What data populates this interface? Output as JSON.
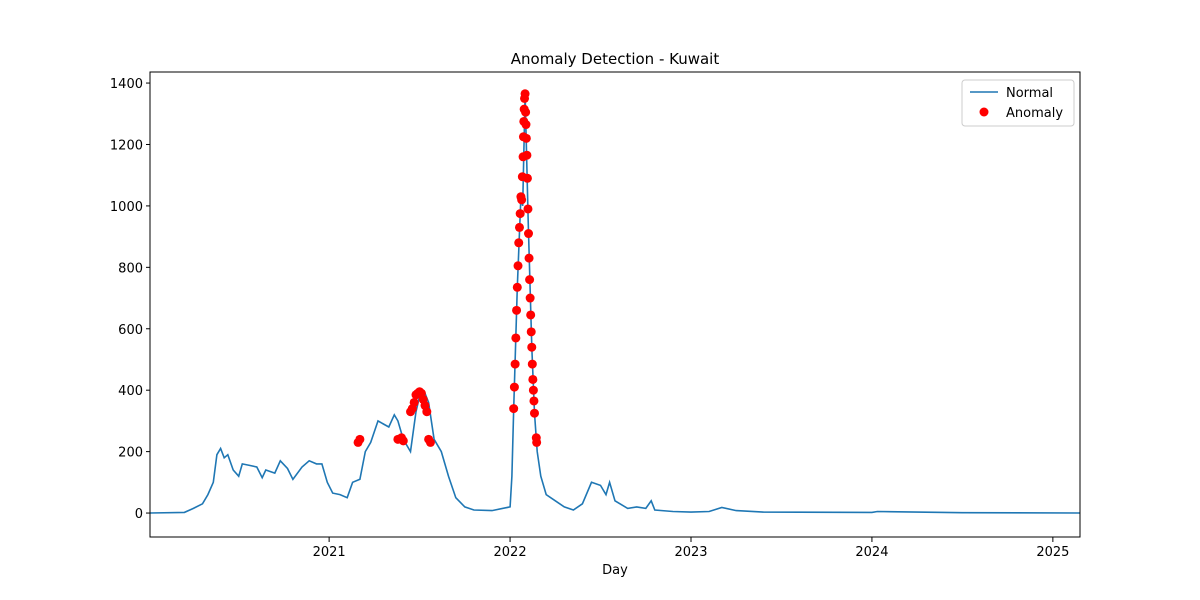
{
  "chart_data": {
    "type": "line",
    "title": "Anomaly Detection - Kuwait",
    "x_label": "Day",
    "xlim": [
      2020.01,
      2025.15
    ],
    "xticks": [
      2021,
      2022,
      2023,
      2024,
      2025
    ],
    "ylim": [
      -78,
      1436
    ],
    "yticks": [
      0,
      200,
      400,
      600,
      800,
      1000,
      1200,
      1400
    ],
    "legend": "upper right",
    "series": [
      {
        "name": "Normal",
        "type": "line",
        "color": "#1f77b4",
        "x": [
          2020.01,
          2020.2,
          2020.25,
          2020.3,
          2020.33,
          2020.36,
          2020.38,
          2020.4,
          2020.42,
          2020.44,
          2020.47,
          2020.5,
          2020.52,
          2020.56,
          2020.6,
          2020.63,
          2020.65,
          2020.7,
          2020.73,
          2020.77,
          2020.8,
          2020.85,
          2020.89,
          2020.93,
          2020.96,
          2020.99,
          2021.02,
          2021.06,
          2021.1,
          2021.13,
          2021.17,
          2021.2,
          2021.23,
          2021.27,
          2021.3,
          2021.33,
          2021.36,
          2021.38,
          2021.41,
          2021.45,
          2021.48,
          2021.5,
          2021.53,
          2021.55,
          2021.58,
          2021.62,
          2021.66,
          2021.7,
          2021.75,
          2021.8,
          2021.9,
          2022.0,
          2022.01,
          2022.02,
          2022.04,
          2022.06,
          2022.07,
          2022.083,
          2022.1,
          2022.12,
          2022.135,
          2022.15,
          2022.17,
          2022.2,
          2022.25,
          2022.3,
          2022.35,
          2022.4,
          2022.45,
          2022.5,
          2022.53,
          2022.55,
          2022.58,
          2022.65,
          2022.7,
          2022.75,
          2022.78,
          2022.8,
          2022.9,
          2023.0,
          2023.1,
          2023.17,
          2023.25,
          2023.4,
          2024.0,
          2024.03,
          2024.5,
          2025.15
        ],
        "values": [
          0,
          2,
          15,
          30,
          60,
          100,
          190,
          210,
          180,
          190,
          140,
          120,
          160,
          155,
          150,
          115,
          140,
          130,
          170,
          145,
          110,
          150,
          170,
          160,
          160,
          100,
          65,
          60,
          50,
          100,
          110,
          200,
          230,
          300,
          290,
          280,
          320,
          300,
          240,
          200,
          330,
          380,
          390,
          360,
          240,
          200,
          120,
          50,
          20,
          10,
          8,
          20,
          120,
          340,
          735,
          1030,
          1000,
          1365,
          950,
          540,
          325,
          200,
          120,
          60,
          40,
          20,
          10,
          30,
          100,
          90,
          60,
          100,
          40,
          15,
          20,
          15,
          40,
          10,
          5,
          3,
          5,
          18,
          8,
          3,
          2,
          5,
          1,
          0
        ]
      },
      {
        "name": "Anomaly",
        "type": "scatter",
        "color": "#ff0000",
        "x": [
          2021.16,
          2021.17,
          2021.38,
          2021.4,
          2021.41,
          2021.45,
          2021.46,
          2021.47,
          2021.48,
          2021.49,
          2021.5,
          2021.51,
          2021.52,
          2021.53,
          2021.54,
          2021.55,
          2021.56,
          2022.02,
          2022.024,
          2022.028,
          2022.032,
          2022.036,
          2022.04,
          2022.044,
          2022.048,
          2022.052,
          2022.056,
          2022.06,
          2022.064,
          2022.068,
          2022.072,
          2022.074,
          2022.076,
          2022.078,
          2022.08,
          2022.083,
          2022.086,
          2022.088,
          2022.09,
          2022.093,
          2022.096,
          2022.099,
          2022.102,
          2022.105,
          2022.108,
          2022.111,
          2022.114,
          2022.117,
          2022.12,
          2022.123,
          2022.126,
          2022.129,
          2022.132,
          2022.135,
          2022.145,
          2022.147
        ],
        "values": [
          230,
          240,
          240,
          245,
          235,
          330,
          340,
          360,
          385,
          390,
          395,
          390,
          370,
          350,
          330,
          240,
          230,
          340,
          410,
          485,
          570,
          660,
          735,
          805,
          880,
          930,
          975,
          1030,
          1020,
          1095,
          1160,
          1225,
          1275,
          1315,
          1350,
          1365,
          1305,
          1265,
          1220,
          1165,
          1090,
          990,
          910,
          830,
          760,
          700,
          645,
          590,
          540,
          485,
          435,
          400,
          365,
          325,
          245,
          230
        ]
      }
    ]
  }
}
